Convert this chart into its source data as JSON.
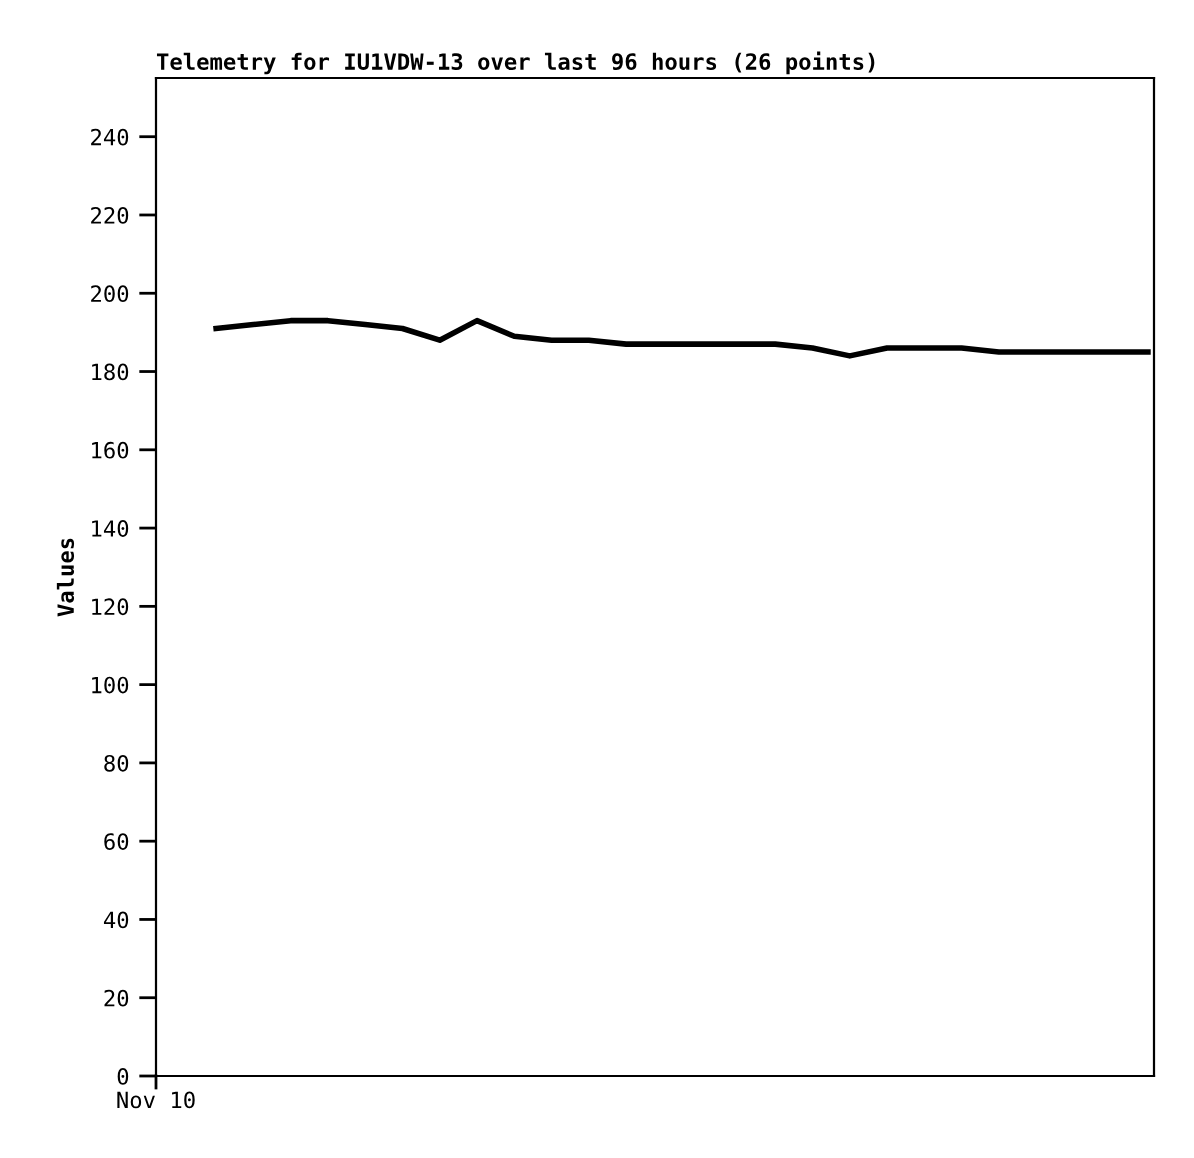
{
  "chart_data": {
    "type": "line",
    "title": "Telemetry for IU1VDW-13 over last 96 hours (26 points)",
    "ylabel": "Values",
    "categories": [
      null,
      null,
      null,
      null,
      null,
      null,
      null,
      null,
      null,
      null,
      null,
      null,
      null,
      null,
      null,
      null,
      null,
      null,
      null,
      null,
      null,
      null,
      null,
      null,
      null,
      null
    ],
    "series": [
      {
        "color": "#000000",
        "values": [
          191,
          192,
          193,
          193,
          192,
          191,
          188,
          193,
          189,
          188,
          188,
          187,
          187,
          187,
          187,
          187,
          186,
          184,
          186,
          186,
          186,
          185,
          185,
          185,
          185,
          185
        ]
      }
    ],
    "annotations": [
      "Nov 10"
    ],
    "ylim": [
      0,
      255
    ],
    "yticks": [
      0,
      20,
      40,
      60,
      80,
      100,
      120,
      140,
      160,
      180,
      200,
      220,
      240
    ],
    "tick_labels": "y",
    "grid": false,
    "legend": false,
    "marker": "none",
    "line_style": "solid"
  }
}
